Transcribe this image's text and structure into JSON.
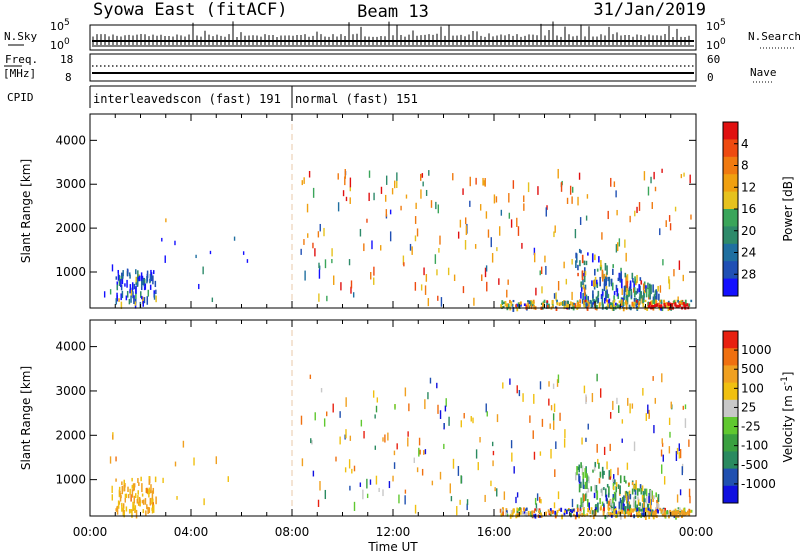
{
  "header": {
    "title_left": "Syowa East (fitACF)",
    "title_center": "Beam 13",
    "title_right": "31/Jan/2019"
  },
  "top_panel": {
    "nsky_label": "N.Sky",
    "nsearch_label": "N.Search",
    "left_tick_top": "10^5",
    "left_tick_bottom": "10^0",
    "right_tick_top": "10^5",
    "right_tick_bottom": "10^0"
  },
  "freq_panel": {
    "freq_label_1": "Freq.",
    "freq_label_2": "[MHz]",
    "nave_label": "Nave",
    "left_tick_top": "18",
    "left_tick_bottom": "8",
    "right_tick_top": "60",
    "right_tick_bottom": "0"
  },
  "cpid": {
    "label": "CPID",
    "segments": [
      {
        "name": "interleavedscon (fast) 191",
        "start_hour": 0
      },
      {
        "name": "normal (fast) 151",
        "start_hour": 8
      }
    ]
  },
  "chart_data": [
    {
      "type": "heatmap",
      "panel": "power",
      "ylabel": "Slant Range [km]",
      "xlabel": "Time UT",
      "x_ticks": [
        "00:00",
        "04:00",
        "08:00",
        "12:00",
        "16:00",
        "20:00",
        "00:00"
      ],
      "xlim_hours": [
        0,
        24
      ],
      "ylim": [
        180,
        4600
      ],
      "y_ticks": [
        1000,
        2000,
        3000,
        4000
      ],
      "colorbar": {
        "label": "Power [dB]",
        "ticks": [
          "4",
          "8",
          "12",
          "16",
          "20",
          "24",
          "28"
        ],
        "colors": [
          "#1410ff",
          "#1f4fb4",
          "#1f6fa0",
          "#2e8a6a",
          "#3aa55a",
          "#e6c21e",
          "#f0a010",
          "#f07a10",
          "#ee4a10",
          "#e01010"
        ]
      }
    },
    {
      "type": "heatmap",
      "panel": "velocity",
      "ylabel": "Slant Range [km]",
      "xlabel": "Time UT",
      "x_ticks": [
        "00:00",
        "04:00",
        "08:00",
        "12:00",
        "16:00",
        "20:00",
        "00:00"
      ],
      "xlim_hours": [
        0,
        24
      ],
      "ylim": [
        180,
        4600
      ],
      "y_ticks": [
        1000,
        2000,
        3000,
        4000
      ],
      "colorbar": {
        "label": "Velocity [m s",
        "label_sup": "-1",
        "label_end": "]",
        "ticks": [
          "1000",
          "500",
          "100",
          "25",
          "-25",
          "-100",
          "-500",
          "-1000"
        ],
        "colors": [
          "#1010e0",
          "#2050b0",
          "#2a8a60",
          "#3aa040",
          "#60c830",
          "#c8c8c8",
          "#f0c010",
          "#f0a020",
          "#f07010",
          "#e82010"
        ]
      }
    }
  ],
  "xlabel": "Time UT"
}
